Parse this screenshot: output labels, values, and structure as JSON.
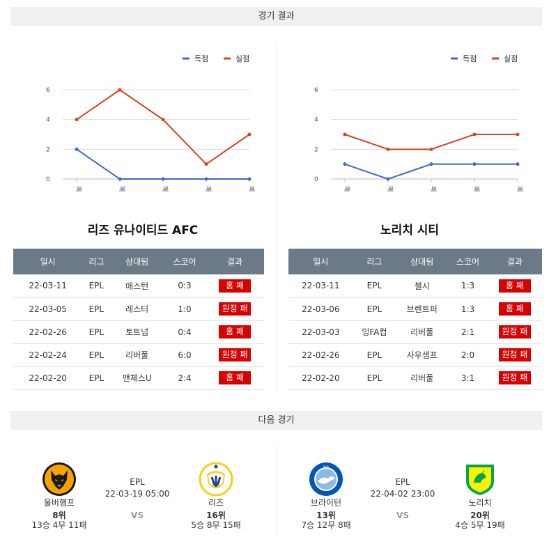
{
  "sections": {
    "results_title": "경기 결과",
    "next_title": "다음 경기"
  },
  "legend": {
    "scored": "득점",
    "conceded": "실점"
  },
  "colors": {
    "scored": "#3d68c8",
    "conceded": "#d5431f",
    "badge": "#d90000",
    "header": "#6c7a87"
  },
  "chart_data": [
    {
      "type": "line",
      "categories": [
        "패",
        "패",
        "패",
        "패",
        "패"
      ],
      "series": [
        {
          "name": "득점",
          "values": [
            2,
            0,
            0,
            0,
            0
          ]
        },
        {
          "name": "실점",
          "values": [
            4,
            6,
            4,
            1,
            3
          ]
        }
      ],
      "yticks": [
        "6",
        "4",
        "2",
        "0"
      ],
      "ylim": [
        0,
        6
      ],
      "legend_position": "top-right",
      "grid": true
    },
    {
      "type": "line",
      "categories": [
        "패",
        "패",
        "패",
        "패",
        "패"
      ],
      "series": [
        {
          "name": "득점",
          "values": [
            1,
            0,
            1,
            1,
            1
          ]
        },
        {
          "name": "실점",
          "values": [
            3,
            2,
            2,
            3,
            3
          ]
        }
      ],
      "yticks": [
        "6",
        "4",
        "2",
        "0"
      ],
      "ylim": [
        0,
        6
      ],
      "legend_position": "top-right",
      "grid": true
    }
  ],
  "teams": [
    {
      "title": "리즈 유나이티드 AFC",
      "headers": [
        "일시",
        "리그",
        "상대팀",
        "스코어",
        "결과"
      ],
      "rows": [
        {
          "date": "22-03-11",
          "league": "EPL",
          "opp": "애스턴",
          "score": "0:3",
          "result": "홈 패"
        },
        {
          "date": "22-03-05",
          "league": "EPL",
          "opp": "레스터",
          "score": "1:0",
          "result": "원정 패"
        },
        {
          "date": "22-02-26",
          "league": "EPL",
          "opp": "토트넘",
          "score": "0:4",
          "result": "홈 패"
        },
        {
          "date": "22-02-24",
          "league": "EPL",
          "opp": "리버풀",
          "score": "6:0",
          "result": "원정 패"
        },
        {
          "date": "22-02-20",
          "league": "EPL",
          "opp": "맨체스U",
          "score": "2:4",
          "result": "홈 패"
        }
      ]
    },
    {
      "title": "노리치 시티",
      "headers": [
        "일시",
        "리그",
        "상대팀",
        "스코어",
        "결과"
      ],
      "rows": [
        {
          "date": "22-03-11",
          "league": "EPL",
          "opp": "첼시",
          "score": "1:3",
          "result": "홈 패"
        },
        {
          "date": "22-03-06",
          "league": "EPL",
          "opp": "브렌트퍼",
          "score": "1:3",
          "result": "홈 패"
        },
        {
          "date": "22-03-03",
          "league": "잉FA컵",
          "opp": "리버풀",
          "score": "2:1",
          "result": "원정 패"
        },
        {
          "date": "22-02-26",
          "league": "EPL",
          "opp": "사우샘프",
          "score": "2:0",
          "result": "원정 패"
        },
        {
          "date": "22-02-20",
          "league": "EPL",
          "opp": "리버풀",
          "score": "3:1",
          "result": "원정 패"
        }
      ]
    }
  ],
  "next_games": [
    {
      "league": "EPL",
      "datetime": "22-03-19 05:00",
      "vs": "VS",
      "home": {
        "name": "울버햄프",
        "rank": "8위",
        "record": "13승 4무 11패",
        "logo_icon": "wolves-crest-icon"
      },
      "away": {
        "name": "리즈",
        "rank": "16위",
        "record": "5승 8무 15패",
        "logo_icon": "leeds-crest-icon"
      }
    },
    {
      "league": "EPL",
      "datetime": "22-04-02 23:00",
      "vs": "VS",
      "home": {
        "name": "브라이턴",
        "rank": "13위",
        "record": "7승 12무 8패",
        "logo_icon": "brighton-crest-icon"
      },
      "away": {
        "name": "노리치",
        "rank": "20위",
        "record": "4승 5무 19패",
        "logo_icon": "norwich-crest-icon"
      }
    }
  ]
}
